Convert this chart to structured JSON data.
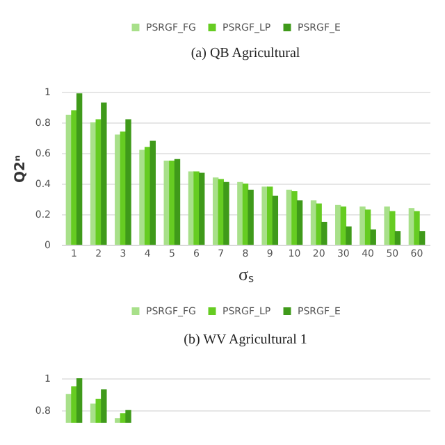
{
  "chart_data": [
    {
      "type": "bar",
      "title": "(a) QB Agricultural",
      "xlabel": "σₛ",
      "ylabel": "Q2ⁿ",
      "categories": [
        "1",
        "2",
        "3",
        "4",
        "5",
        "6",
        "7",
        "8",
        "9",
        "10",
        "20",
        "30",
        "40",
        "50",
        "60"
      ],
      "series": [
        {
          "name": "PSRGF_FG",
          "color": "#a8e08a",
          "values": [
            0.85,
            0.8,
            0.72,
            0.62,
            0.55,
            0.48,
            0.44,
            0.41,
            0.38,
            0.36,
            0.29,
            0.26,
            0.25,
            0.25,
            0.24
          ]
        },
        {
          "name": "PSRGF_LP",
          "color": "#66cc22",
          "values": [
            0.88,
            0.82,
            0.74,
            0.64,
            0.55,
            0.48,
            0.43,
            0.4,
            0.38,
            0.35,
            0.27,
            0.25,
            0.23,
            0.22,
            0.22
          ]
        },
        {
          "name": "PSRGF_E",
          "color": "#3f9a1a",
          "values": [
            0.99,
            0.93,
            0.82,
            0.68,
            0.56,
            0.47,
            0.41,
            0.36,
            0.32,
            0.29,
            0.15,
            0.12,
            0.1,
            0.09,
            0.09
          ]
        }
      ],
      "ylim": [
        0,
        1
      ],
      "yticks": [
        0,
        0.2,
        0.4,
        0.6,
        0.8,
        1
      ],
      "grid": "y",
      "legend": "top"
    },
    {
      "type": "bar",
      "title": "(b) WV Agricultural 1",
      "categories": [
        null,
        null,
        null,
        null,
        null,
        null,
        null,
        null,
        null,
        null,
        null,
        null,
        null,
        null,
        null
      ],
      "series": [
        {
          "name": "PSRGF_FG",
          "color": "#a8e08a",
          "values": [
            0.9,
            0.84,
            0.75,
            null,
            null,
            null,
            null,
            null,
            null,
            null,
            null,
            null,
            null,
            null,
            null
          ]
        },
        {
          "name": "PSRGF_LP",
          "color": "#66cc22",
          "values": [
            0.95,
            0.87,
            0.78,
            null,
            null,
            null,
            null,
            null,
            null,
            null,
            null,
            null,
            null,
            null,
            null
          ]
        },
        {
          "name": "PSRGF_E",
          "color": "#3f9a1a",
          "values": [
            1.0,
            0.93,
            0.8,
            null,
            null,
            null,
            null,
            null,
            null,
            null,
            null,
            null,
            null,
            null,
            null
          ]
        }
      ],
      "ylim": [
        0.72,
        1
      ],
      "yticks": [
        0.8,
        1
      ],
      "grid": "y",
      "legend": "top",
      "tick_labels": "y"
    }
  ]
}
